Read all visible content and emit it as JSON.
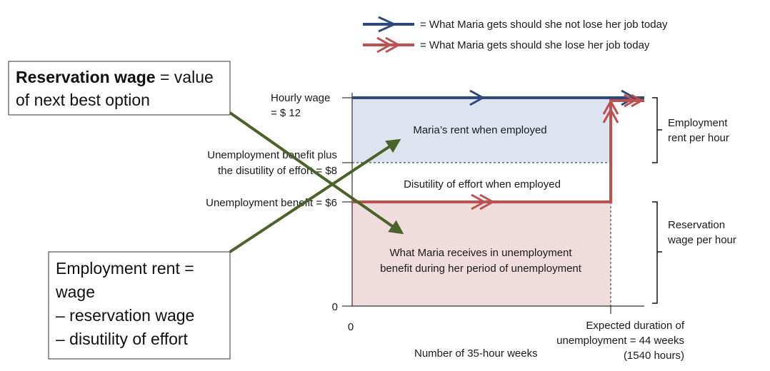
{
  "legend": {
    "blue_line_label": "= What Maria gets should she not lose her job today",
    "red_line_label": "= What Maria gets should she lose her job today"
  },
  "y_axis": {
    "hourly_wage_label": "Hourly wage",
    "hourly_wage_value": "= $ 12",
    "benefit_plus_effort_line1": "Unemployment benefit plus",
    "benefit_plus_effort_line2": "the disutility of effort = $8",
    "benefit_label": "Unemployment benefit = $6",
    "origin_label": "0"
  },
  "x_axis": {
    "origin_label": "0",
    "duration_line1": "Expected duration of",
    "duration_line2": "unemployment = 44 weeks",
    "duration_line3": "(1540 hours)",
    "axis_title": "Number of 35-hour weeks"
  },
  "regions": {
    "rent_label": "Maria’s rent when employed",
    "disutility_label": "Disutility of effort when employed",
    "benefit_line1": "What Maria receives in unemployment",
    "benefit_line2": "benefit during her period of unemployment"
  },
  "braces": {
    "employment_rent_line1": "Employment",
    "employment_rent_line2": "rent per hour",
    "reservation_wage_line1": "Reservation",
    "reservation_wage_line2": "wage per hour"
  },
  "callouts": {
    "reservation_bold": "Reservation wage",
    "reservation_rest_line1": " = value",
    "reservation_line2": "of next best option",
    "employment_rent_line1": "Employment rent =",
    "employment_rent_line2": "wage",
    "employment_rent_line3": "– reservation wage",
    "employment_rent_line4": "– disutility of effort"
  },
  "colors": {
    "blue_line": "#2e4a7d",
    "red_line": "#c0504d",
    "rent_fill": "#dde4f0",
    "benefit_fill": "#f0dcdc",
    "arrow_green": "#4a6328"
  }
}
